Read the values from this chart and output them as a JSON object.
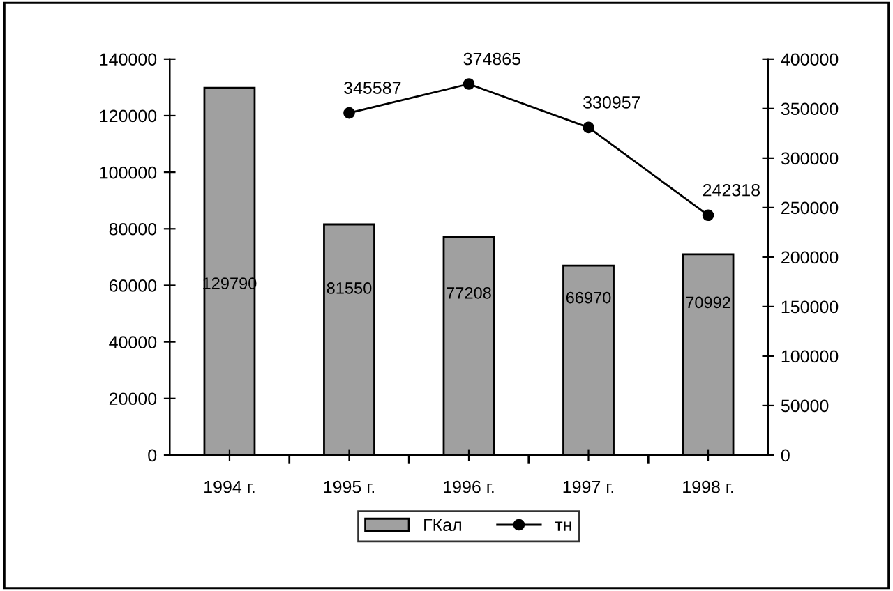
{
  "chart_data": {
    "type": "bar",
    "categories": [
      "1994 г.",
      "1995 г.",
      "1996 г.",
      "1997 г.",
      "1998 г."
    ],
    "series": [
      {
        "name": "ГКал",
        "color": "#a0a0a0",
        "values": [
          129790,
          81550,
          77208,
          66970,
          70992
        ]
      },
      {
        "name": "тн",
        "type": "line",
        "axis": "y2",
        "color": "#000000",
        "values": [
          null,
          345587,
          374865,
          330957,
          242318
        ]
      }
    ],
    "ylim": [
      0,
      140000
    ],
    "yticks": [
      0,
      20000,
      40000,
      60000,
      80000,
      100000,
      120000,
      140000
    ],
    "y2lim": [
      0,
      400000
    ],
    "y2ticks": [
      0,
      50000,
      100000,
      150000,
      200000,
      250000,
      300000,
      350000,
      400000
    ],
    "data_labels": true,
    "legend": "bottom",
    "marker": "circle",
    "line_style": "solid",
    "grid": false
  }
}
